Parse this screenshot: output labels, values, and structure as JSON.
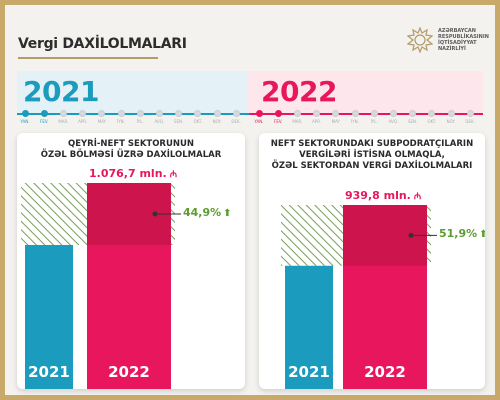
{
  "page": {
    "title": "Vergi DAXİLOLMALARI"
  },
  "logo": {
    "lines": [
      "AZƏRBAYCAN",
      "RESPUBLİKASININ",
      "İQTİSADİYYAT",
      "NAZİRLİYİ"
    ]
  },
  "timeline": {
    "year_left": "2021",
    "year_right": "2022",
    "months_2021": [
      "YAN.",
      "FEV.",
      "MAR.",
      "APR.",
      "MAY",
      "İYN.",
      "İYL.",
      "AVQ.",
      "SEN.",
      "OKT.",
      "NOY.",
      "DEK."
    ],
    "months_2022": [
      "YAN.",
      "FEV.",
      "MAR.",
      "APR.",
      "MAY",
      "İYN.",
      "İYL.",
      "AVQ.",
      "SEN.",
      "OKT.",
      "NOY.",
      "DEK."
    ],
    "active_months_2022": 2
  },
  "colors": {
    "blue": "#1b9bbd",
    "pink": "#e8175d",
    "green": "#5a9e2f",
    "stripe": "#7aa05a"
  },
  "chart_data": [
    {
      "type": "bar",
      "title": "QEYRİ-NEFT SEKTORUNUN ÖZƏL BÖLMƏSİ ÜZRƏ DAXİLOLMALAR",
      "title_lines": [
        "QEYRİ-NEFT SEKTORUNUN",
        "ÖZƏL BÖLMƏSİ ÜZRƏ DAXİLOLMALAR"
      ],
      "categories": [
        "2021",
        "2022"
      ],
      "values": [
        743,
        1076.7
      ],
      "value_label": "1.076,7 mln.",
      "currency_symbol": "₼",
      "growth_label": "44,9%",
      "growth_arrow": "⬆"
    },
    {
      "type": "bar",
      "title": "NEFT SEKTORUNDAKI SUBPODRATÇILARIN VERGİLƏRİ İSTİSNA OLMAQLA, ÖZƏL SEKTORDAN VERGİ DAXİLOLMALARI",
      "title_lines": [
        "NEFT SEKTORUNDAKI SUBPODRATÇILARIN",
        "VERGİLƏRİ İSTİSNA OLMAQLA,",
        "ÖZƏL SEKTORDAN VERGİ DAXİLOLMALARI"
      ],
      "categories": [
        "2021",
        "2022"
      ],
      "values": [
        619,
        939.8
      ],
      "value_label": "939,8 mln.",
      "currency_symbol": "₼",
      "growth_label": "51,9%",
      "growth_arrow": "⬆"
    }
  ]
}
